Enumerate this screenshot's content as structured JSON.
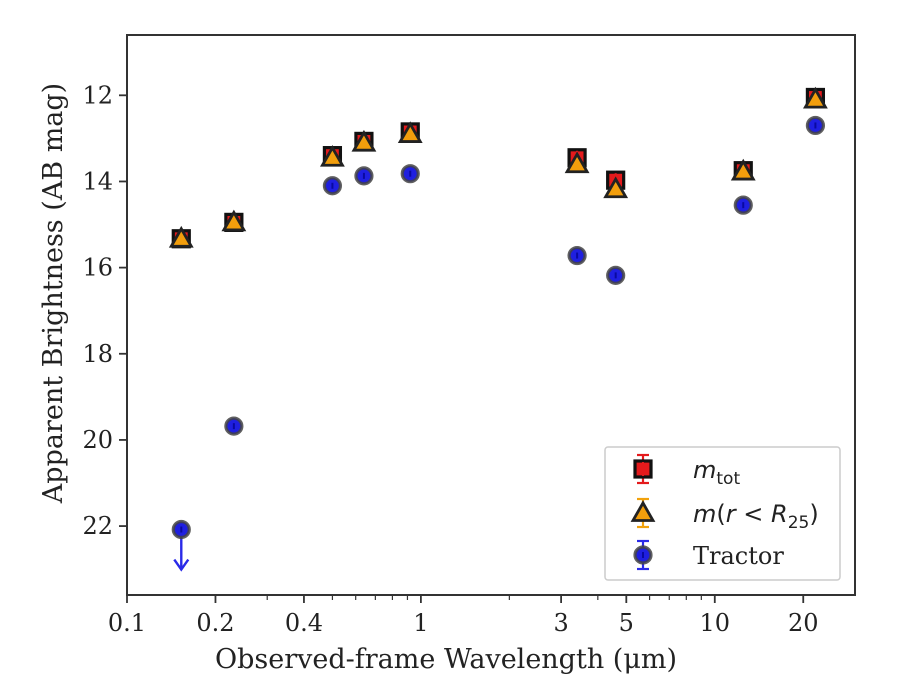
{
  "chart_data": {
    "type": "scatter",
    "title": "",
    "xlabel": "Observed-frame Wavelength (μm)",
    "ylabel": "Apparent Brightness (AB mag)",
    "xscale": "log",
    "xlim": [
      0.1,
      30
    ],
    "ylim": [
      23.6,
      10.6
    ],
    "y_inverted": true,
    "grid": false,
    "legend_position": "lower right",
    "xticks": [
      0.1,
      0.2,
      0.4,
      1,
      3,
      5,
      10,
      20
    ],
    "xtick_labels": [
      "0.1",
      "0.2",
      "0.4",
      "1",
      "3",
      "5",
      "10",
      "20"
    ],
    "yticks": [
      12,
      14,
      16,
      18,
      20,
      22
    ],
    "ytick_labels": [
      "12",
      "14",
      "16",
      "18",
      "20",
      "22"
    ],
    "series": [
      {
        "name": "m_tot",
        "legend_label": "m",
        "legend_sub": "tot",
        "marker": "square",
        "color": "#e41a1c",
        "x": [
          0.153,
          0.231,
          0.5,
          0.64,
          0.92,
          3.4,
          4.6,
          12.5,
          22.0
        ],
        "y": [
          15.33,
          14.95,
          13.4,
          13.07,
          12.85,
          13.45,
          13.97,
          13.75,
          12.05
        ]
      },
      {
        "name": "m(r < R25)",
        "legend_label": "m(r < R",
        "legend_sub": "25",
        "legend_suffix": ")",
        "marker": "triangle",
        "color": "#f29e0c",
        "x": [
          0.153,
          0.231,
          0.5,
          0.64,
          0.92,
          3.4,
          4.6,
          12.5,
          22.0
        ],
        "y": [
          15.33,
          14.95,
          13.45,
          13.1,
          12.9,
          13.6,
          14.18,
          13.77,
          12.1
        ]
      },
      {
        "name": "Tractor",
        "legend_label": "Tractor",
        "marker": "circle",
        "color": "#1f1fe0",
        "x": [
          0.153,
          0.231,
          0.5,
          0.64,
          0.92,
          3.4,
          4.6,
          12.5,
          22.0
        ],
        "y": [
          22.08,
          19.68,
          14.1,
          13.87,
          13.82,
          15.72,
          16.18,
          14.55,
          12.7
        ],
        "upper_limit_index": 0
      }
    ]
  }
}
